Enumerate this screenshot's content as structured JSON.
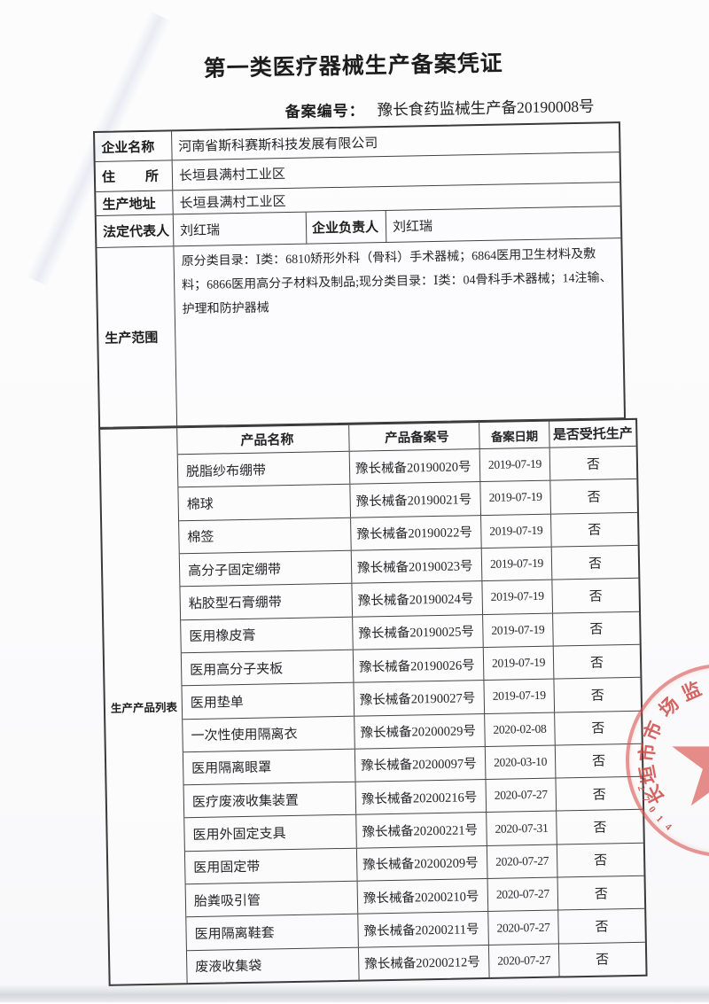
{
  "doc": {
    "title": "第一类医疗器械生产备案凭证",
    "record_no_label": "备案编号：",
    "record_no_value": "豫长食药监械生产备20190008号"
  },
  "info": {
    "company_label": "企业名称",
    "company": "河南省斯科赛斯科技发展有限公司",
    "residence_label_char1": "住",
    "residence_label_char2": "所",
    "residence": "长垣县满村工业区",
    "prod_address_label": "生产地址",
    "prod_address": "长垣县满村工业区",
    "legal_rep_label": "法定代表人",
    "legal_rep": "刘红瑞",
    "manager_label": "企业负责人",
    "manager": "刘红瑞",
    "scope_label": "生产范围",
    "scope_text": "原分类目录：Ⅰ类：6810矫形外科（骨科）手术器械；6864医用卫生材料及敷料；6866医用高分子材料及制品;现分类目录：Ⅰ类：04骨科手术器械；14注输、护理和防护器械"
  },
  "product_table": {
    "section_label": "生产产品列表",
    "headers": [
      "产品名称",
      "产品备案号",
      "备案日期",
      "是否受托生产"
    ],
    "rows": [
      {
        "name": "脱脂纱布绷带",
        "reg_no": "豫长械备20190020号",
        "date": "2019-07-19",
        "consigned": "否"
      },
      {
        "name": "棉球",
        "reg_no": "豫长械备20190021号",
        "date": "2019-07-19",
        "consigned": "否"
      },
      {
        "name": "棉签",
        "reg_no": "豫长械备20190022号",
        "date": "2019-07-19",
        "consigned": "否"
      },
      {
        "name": "高分子固定绷带",
        "reg_no": "豫长械备20190023号",
        "date": "2019-07-19",
        "consigned": "否"
      },
      {
        "name": "粘胶型石膏绷带",
        "reg_no": "豫长械备20190024号",
        "date": "2019-07-19",
        "consigned": "否"
      },
      {
        "name": "医用橡皮膏",
        "reg_no": "豫长械备20190025号",
        "date": "2019-07-19",
        "consigned": "否"
      },
      {
        "name": "医用高分子夹板",
        "reg_no": "豫长械备20190026号",
        "date": "2019-07-19",
        "consigned": "否"
      },
      {
        "name": "医用垫单",
        "reg_no": "豫长械备20190027号",
        "date": "2019-07-19",
        "consigned": "否"
      },
      {
        "name": "一次性使用隔离衣",
        "reg_no": "豫长械备20200029号",
        "date": "2020-02-08",
        "consigned": "否"
      },
      {
        "name": "医用隔离眼罩",
        "reg_no": "豫长械备20200097号",
        "date": "2020-03-10",
        "consigned": "否"
      },
      {
        "name": "医疗废液收集装置",
        "reg_no": "豫长械备20200216号",
        "date": "2020-07-27",
        "consigned": "否"
      },
      {
        "name": "医用外固定支具",
        "reg_no": "豫长械备20200221号",
        "date": "2020-07-31",
        "consigned": "否"
      },
      {
        "name": "医用固定带",
        "reg_no": "豫长械备20200209号",
        "date": "2020-07-27",
        "consigned": "否"
      },
      {
        "name": "胎粪吸引管",
        "reg_no": "豫长械备20200210号",
        "date": "2020-07-27",
        "consigned": "否"
      },
      {
        "name": "医用隔离鞋套",
        "reg_no": "豫长械备20200211号",
        "date": "2020-07-27",
        "consigned": "否"
      },
      {
        "name": "废液收集袋",
        "reg_no": "豫长械备20200212号",
        "date": "2020-07-27",
        "consigned": "否"
      }
    ]
  },
  "seal": {
    "arc_text": "长垣市市场监",
    "serial": "41072",
    "color": "#d65652"
  }
}
